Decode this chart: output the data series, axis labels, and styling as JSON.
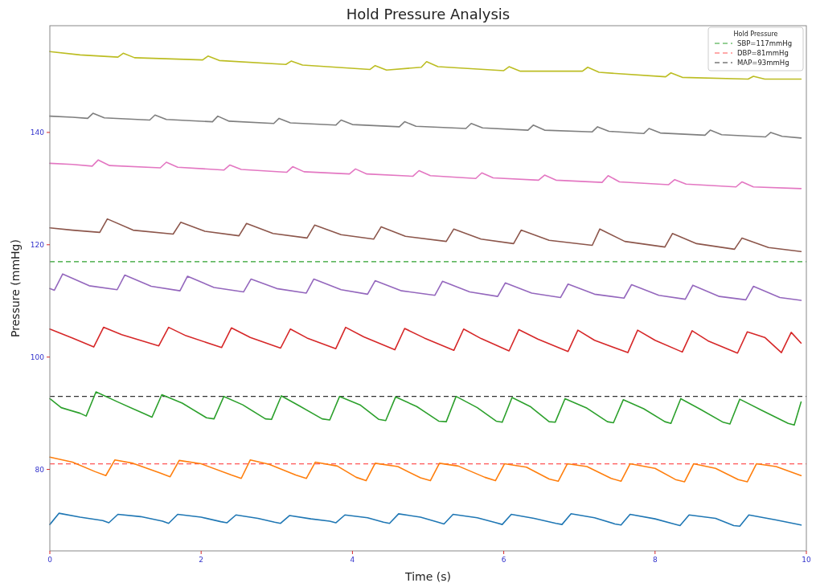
{
  "chart_data": {
    "type": "line",
    "title": "Hold Pressure Analysis",
    "xlabel": "Time (s)",
    "ylabel": "Pressure (mmHg)",
    "legend_title": "Hold Pressure",
    "xlim": [
      0,
      10
    ],
    "xticks": [
      0,
      2,
      4,
      6,
      8,
      10
    ],
    "ylim": [
      65.5,
      159
    ],
    "yticks": [
      80,
      100,
      120,
      140
    ],
    "grid": false,
    "legend": "top right",
    "line_style": "solid",
    "marker": "none",
    "series": [
      {
        "color": "#1f77b4",
        "x": [
          0,
          0.12,
          0.4,
          0.7,
          0.78,
          0.9,
          1.2,
          1.49,
          1.57,
          1.69,
          2.0,
          2.26,
          2.34,
          2.46,
          2.75,
          2.97,
          3.05,
          3.17,
          3.45,
          3.7,
          3.78,
          3.9,
          4.2,
          4.41,
          4.49,
          4.61,
          4.9,
          5.13,
          5.21,
          5.33,
          5.65,
          5.9,
          5.98,
          6.1,
          6.4,
          6.69,
          6.77,
          6.89,
          7.2,
          7.47,
          7.55,
          7.67,
          8.0,
          8.25,
          8.33,
          8.45,
          8.8,
          9.04,
          9.12,
          9.24,
          9.6,
          9.93
        ],
        "values": [
          70.2,
          72.2,
          71.5,
          70.9,
          70.5,
          72.0,
          71.6,
          70.8,
          70.4,
          72.0,
          71.5,
          70.7,
          70.5,
          71.9,
          71.3,
          70.6,
          70.4,
          71.8,
          71.2,
          70.8,
          70.5,
          71.9,
          71.4,
          70.6,
          70.4,
          72.1,
          71.5,
          70.6,
          70.3,
          72.0,
          71.4,
          70.5,
          70.2,
          72.0,
          71.3,
          70.4,
          70.2,
          72.1,
          71.4,
          70.3,
          70.1,
          72.0,
          71.2,
          70.3,
          70.0,
          71.9,
          71.3,
          70.0,
          69.9,
          71.9,
          71.0,
          70.1
        ]
      },
      {
        "color": "#ff7f0e",
        "x": [
          0,
          0.3,
          0.6,
          0.74,
          0.86,
          1.1,
          1.45,
          1.59,
          1.71,
          2.0,
          2.4,
          2.53,
          2.65,
          2.9,
          3.25,
          3.39,
          3.51,
          3.8,
          4.05,
          4.18,
          4.3,
          4.6,
          4.9,
          5.03,
          5.15,
          5.4,
          5.75,
          5.89,
          6.01,
          6.3,
          6.6,
          6.72,
          6.84,
          7.1,
          7.42,
          7.55,
          7.67,
          8.0,
          8.27,
          8.39,
          8.51,
          8.8,
          9.1,
          9.22,
          9.34,
          9.6,
          9.93
        ],
        "values": [
          82.2,
          81.3,
          79.6,
          78.9,
          81.7,
          81.1,
          79.4,
          78.7,
          81.6,
          81.0,
          79.0,
          78.4,
          81.7,
          80.9,
          79.0,
          78.4,
          81.3,
          80.6,
          78.6,
          78.0,
          81.1,
          80.5,
          78.5,
          78.0,
          81.1,
          80.6,
          78.6,
          78.0,
          81.0,
          80.4,
          78.3,
          77.9,
          81.0,
          80.5,
          78.4,
          77.9,
          81.0,
          80.2,
          78.2,
          77.8,
          81.0,
          80.2,
          78.2,
          77.8,
          81.0,
          80.5,
          78.9
        ]
      },
      {
        "color": "#2ca02c",
        "x": [
          0,
          0.15,
          0.4,
          0.48,
          0.61,
          0.9,
          1.25,
          1.35,
          1.48,
          1.75,
          2.07,
          2.17,
          2.3,
          2.55,
          2.85,
          2.93,
          3.06,
          3.3,
          3.6,
          3.7,
          3.83,
          4.1,
          4.35,
          4.44,
          4.57,
          4.85,
          5.14,
          5.24,
          5.37,
          5.65,
          5.9,
          5.98,
          6.11,
          6.35,
          6.6,
          6.68,
          6.81,
          7.1,
          7.37,
          7.45,
          7.58,
          7.85,
          8.13,
          8.21,
          8.34,
          8.6,
          8.9,
          8.99,
          9.12,
          9.4,
          9.76,
          9.84,
          9.93
        ],
        "values": [
          92.6,
          91.0,
          90.0,
          89.5,
          93.8,
          92.0,
          89.9,
          89.3,
          93.3,
          91.8,
          89.2,
          89.0,
          93.0,
          91.5,
          89.0,
          88.9,
          93.1,
          91.3,
          89.0,
          88.8,
          93.0,
          91.5,
          88.9,
          88.7,
          92.9,
          91.2,
          88.6,
          88.5,
          93.0,
          91.0,
          88.6,
          88.4,
          92.8,
          91.2,
          88.5,
          88.4,
          92.6,
          90.9,
          88.5,
          88.3,
          92.4,
          90.8,
          88.5,
          88.2,
          92.6,
          90.7,
          88.4,
          88.1,
          92.5,
          90.6,
          88.2,
          87.9,
          92.0
        ]
      },
      {
        "color": "#d62728",
        "x": [
          0,
          0.3,
          0.58,
          0.71,
          0.95,
          1.44,
          1.57,
          1.8,
          2.27,
          2.4,
          2.65,
          3.05,
          3.18,
          3.4,
          3.78,
          3.91,
          4.15,
          4.56,
          4.69,
          4.95,
          5.34,
          5.47,
          5.7,
          6.07,
          6.2,
          6.45,
          6.85,
          6.98,
          7.2,
          7.64,
          7.77,
          8.0,
          8.36,
          8.49,
          8.7,
          9.09,
          9.22,
          9.45,
          9.67,
          9.8,
          9.93
        ],
        "values": [
          105.0,
          103.4,
          101.8,
          105.3,
          104.0,
          102.0,
          105.3,
          103.8,
          101.7,
          105.2,
          103.5,
          101.6,
          105.0,
          103.4,
          101.5,
          105.3,
          103.6,
          101.3,
          105.1,
          103.4,
          101.2,
          105.0,
          103.3,
          101.1,
          104.9,
          103.2,
          101.0,
          104.8,
          103.0,
          100.8,
          104.8,
          103.0,
          100.9,
          104.7,
          102.9,
          100.7,
          104.5,
          103.5,
          100.8,
          104.4,
          102.5
        ]
      },
      {
        "color": "#9467bd",
        "x": [
          0,
          0.06,
          0.17,
          0.52,
          0.89,
          0.99,
          1.34,
          1.72,
          1.82,
          2.17,
          2.56,
          2.66,
          3.0,
          3.39,
          3.49,
          3.85,
          4.2,
          4.3,
          4.65,
          5.09,
          5.19,
          5.55,
          5.92,
          6.02,
          6.37,
          6.75,
          6.85,
          7.2,
          7.59,
          7.69,
          8.05,
          8.4,
          8.5,
          8.85,
          9.2,
          9.3,
          9.65,
          9.93
        ],
        "values": [
          112.2,
          111.9,
          114.8,
          112.7,
          112.0,
          114.6,
          112.6,
          111.8,
          114.4,
          112.4,
          111.6,
          113.9,
          112.2,
          111.4,
          113.9,
          112.0,
          111.2,
          113.6,
          111.8,
          111.0,
          113.5,
          111.6,
          110.8,
          113.2,
          111.4,
          110.6,
          113.0,
          111.2,
          110.5,
          112.9,
          111.0,
          110.3,
          112.8,
          110.8,
          110.2,
          112.6,
          110.6,
          110.1
        ]
      },
      {
        "color": "#8c564b",
        "x": [
          0,
          0.3,
          0.66,
          0.76,
          1.1,
          1.63,
          1.73,
          2.05,
          2.5,
          2.6,
          2.95,
          3.4,
          3.5,
          3.85,
          4.28,
          4.38,
          4.7,
          5.24,
          5.34,
          5.7,
          6.13,
          6.23,
          6.6,
          7.17,
          7.27,
          7.6,
          8.13,
          8.23,
          8.55,
          9.05,
          9.15,
          9.5,
          9.93
        ],
        "values": [
          123.0,
          122.6,
          122.2,
          124.6,
          122.6,
          121.9,
          124.0,
          122.4,
          121.6,
          123.8,
          122.0,
          121.2,
          123.5,
          121.8,
          121.0,
          123.2,
          121.5,
          120.6,
          122.8,
          121.0,
          120.2,
          122.6,
          120.8,
          119.9,
          122.8,
          120.6,
          119.6,
          122.0,
          120.2,
          119.2,
          121.2,
          119.5,
          118.8
        ]
      },
      {
        "color": "#e377c2",
        "x": [
          0,
          0.3,
          0.56,
          0.64,
          0.79,
          1.46,
          1.54,
          1.69,
          2.3,
          2.38,
          2.53,
          3.13,
          3.21,
          3.36,
          3.96,
          4.04,
          4.19,
          4.8,
          4.88,
          5.03,
          5.63,
          5.71,
          5.86,
          6.46,
          6.54,
          6.69,
          7.3,
          7.38,
          7.53,
          8.18,
          8.26,
          8.41,
          9.07,
          9.15,
          9.3,
          9.93
        ],
        "values": [
          134.5,
          134.3,
          134.0,
          135.1,
          134.1,
          133.7,
          134.7,
          133.8,
          133.3,
          134.2,
          133.4,
          132.9,
          133.9,
          133.0,
          132.6,
          133.5,
          132.6,
          132.2,
          133.2,
          132.3,
          131.8,
          132.8,
          131.9,
          131.5,
          132.4,
          131.5,
          131.1,
          132.3,
          131.2,
          130.7,
          131.6,
          130.8,
          130.3,
          131.2,
          130.3,
          130.0
        ]
      },
      {
        "color": "#7f7f7f",
        "x": [
          0,
          0.3,
          0.5,
          0.57,
          0.72,
          1.32,
          1.39,
          1.54,
          2.15,
          2.22,
          2.37,
          2.96,
          3.03,
          3.18,
          3.78,
          3.85,
          4.0,
          4.62,
          4.69,
          4.84,
          5.5,
          5.57,
          5.72,
          6.32,
          6.39,
          6.54,
          7.17,
          7.24,
          7.39,
          7.85,
          7.92,
          8.07,
          8.66,
          8.73,
          8.88,
          9.46,
          9.53,
          9.68,
          9.93
        ],
        "values": [
          142.9,
          142.7,
          142.5,
          143.4,
          142.6,
          142.2,
          143.1,
          142.3,
          141.9,
          142.9,
          142.0,
          141.6,
          142.5,
          141.7,
          141.3,
          142.2,
          141.4,
          141.0,
          141.9,
          141.1,
          140.7,
          141.6,
          140.8,
          140.4,
          141.3,
          140.4,
          140.1,
          141.0,
          140.2,
          139.8,
          140.7,
          139.9,
          139.5,
          140.4,
          139.6,
          139.2,
          140.0,
          139.3,
          139.0
        ]
      },
      {
        "color": "#bcbd22",
        "x": [
          0,
          0.4,
          0.9,
          0.97,
          1.12,
          2.02,
          2.09,
          2.24,
          3.12,
          3.19,
          3.34,
          4.23,
          4.3,
          4.45,
          4.91,
          4.98,
          5.13,
          6.0,
          6.07,
          6.22,
          7.04,
          7.11,
          7.26,
          8.14,
          8.21,
          8.36,
          9.23,
          9.3,
          9.45,
          9.93
        ],
        "values": [
          154.4,
          153.8,
          153.4,
          154.1,
          153.3,
          152.9,
          153.6,
          152.8,
          152.1,
          152.7,
          152.0,
          151.2,
          151.9,
          151.1,
          151.6,
          152.6,
          151.7,
          151.0,
          151.7,
          150.9,
          150.9,
          151.6,
          150.7,
          149.9,
          150.6,
          149.8,
          149.5,
          150.0,
          149.5,
          149.5
        ]
      }
    ],
    "ref_lines": [
      {
        "axis": "y",
        "value": 117,
        "label": "SBP=117mmHg",
        "color": "#2ca02c",
        "line_style": "dashed"
      },
      {
        "axis": "y",
        "value": 81,
        "label": "DBP=81mmHg",
        "color": "#ff5555",
        "line_style": "dashed"
      },
      {
        "axis": "y",
        "value": 93,
        "label": "MAP=93mmHg",
        "color": "#333333",
        "line_style": "dashed"
      }
    ]
  }
}
